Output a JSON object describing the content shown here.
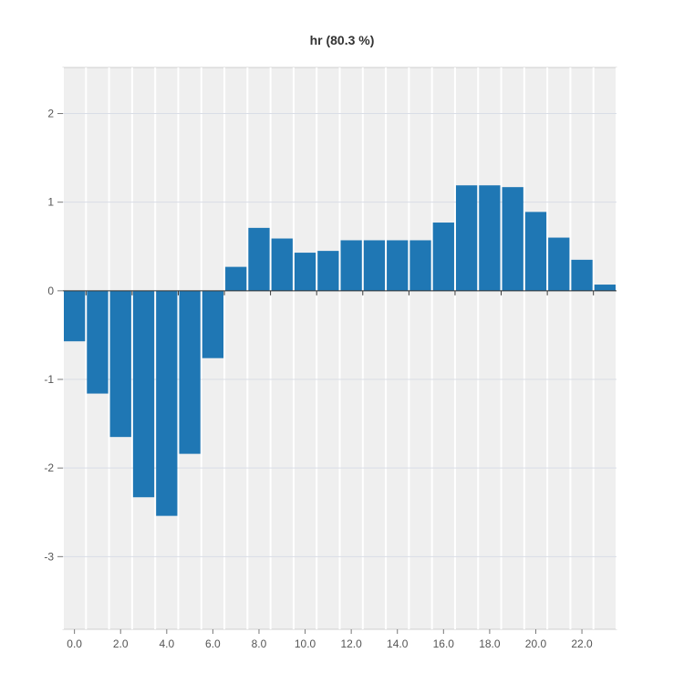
{
  "chart_data": {
    "type": "bar",
    "title": "hr (80.3 %)",
    "xlabel": "",
    "ylabel": "",
    "x": [
      0,
      1,
      2,
      3,
      4,
      5,
      6,
      7,
      8,
      9,
      10,
      11,
      12,
      13,
      14,
      15,
      16,
      17,
      18,
      19,
      20,
      21,
      22,
      23
    ],
    "values": [
      -0.57,
      -1.16,
      -1.65,
      -2.33,
      -2.54,
      -1.84,
      -0.76,
      0.27,
      0.71,
      0.59,
      0.43,
      0.45,
      0.57,
      0.57,
      0.57,
      0.57,
      0.77,
      1.19,
      1.19,
      1.17,
      0.89,
      0.6,
      0.35,
      0.07
    ],
    "xlim": [
      -0.5,
      23.5
    ],
    "ylim": [
      -3.82,
      2.52
    ],
    "x_ticks": [
      "0.0",
      "2.0",
      "4.0",
      "6.0",
      "8.0",
      "10.0",
      "12.0",
      "14.0",
      "16.0",
      "18.0",
      "20.0",
      "22.0"
    ],
    "x_tick_values": [
      0,
      2,
      4,
      6,
      8,
      10,
      12,
      14,
      16,
      18,
      20,
      22
    ],
    "y_ticks": [
      "2",
      "1",
      "0",
      "-1",
      "-2",
      "-3"
    ],
    "y_tick_values": [
      2,
      1,
      0,
      -1,
      -2,
      -3
    ],
    "grid": true,
    "bar_color": "#1f77b4",
    "plot_background": "#efefef",
    "grid_color": "#ffffff",
    "hgrid_color": "#d9dde6"
  }
}
